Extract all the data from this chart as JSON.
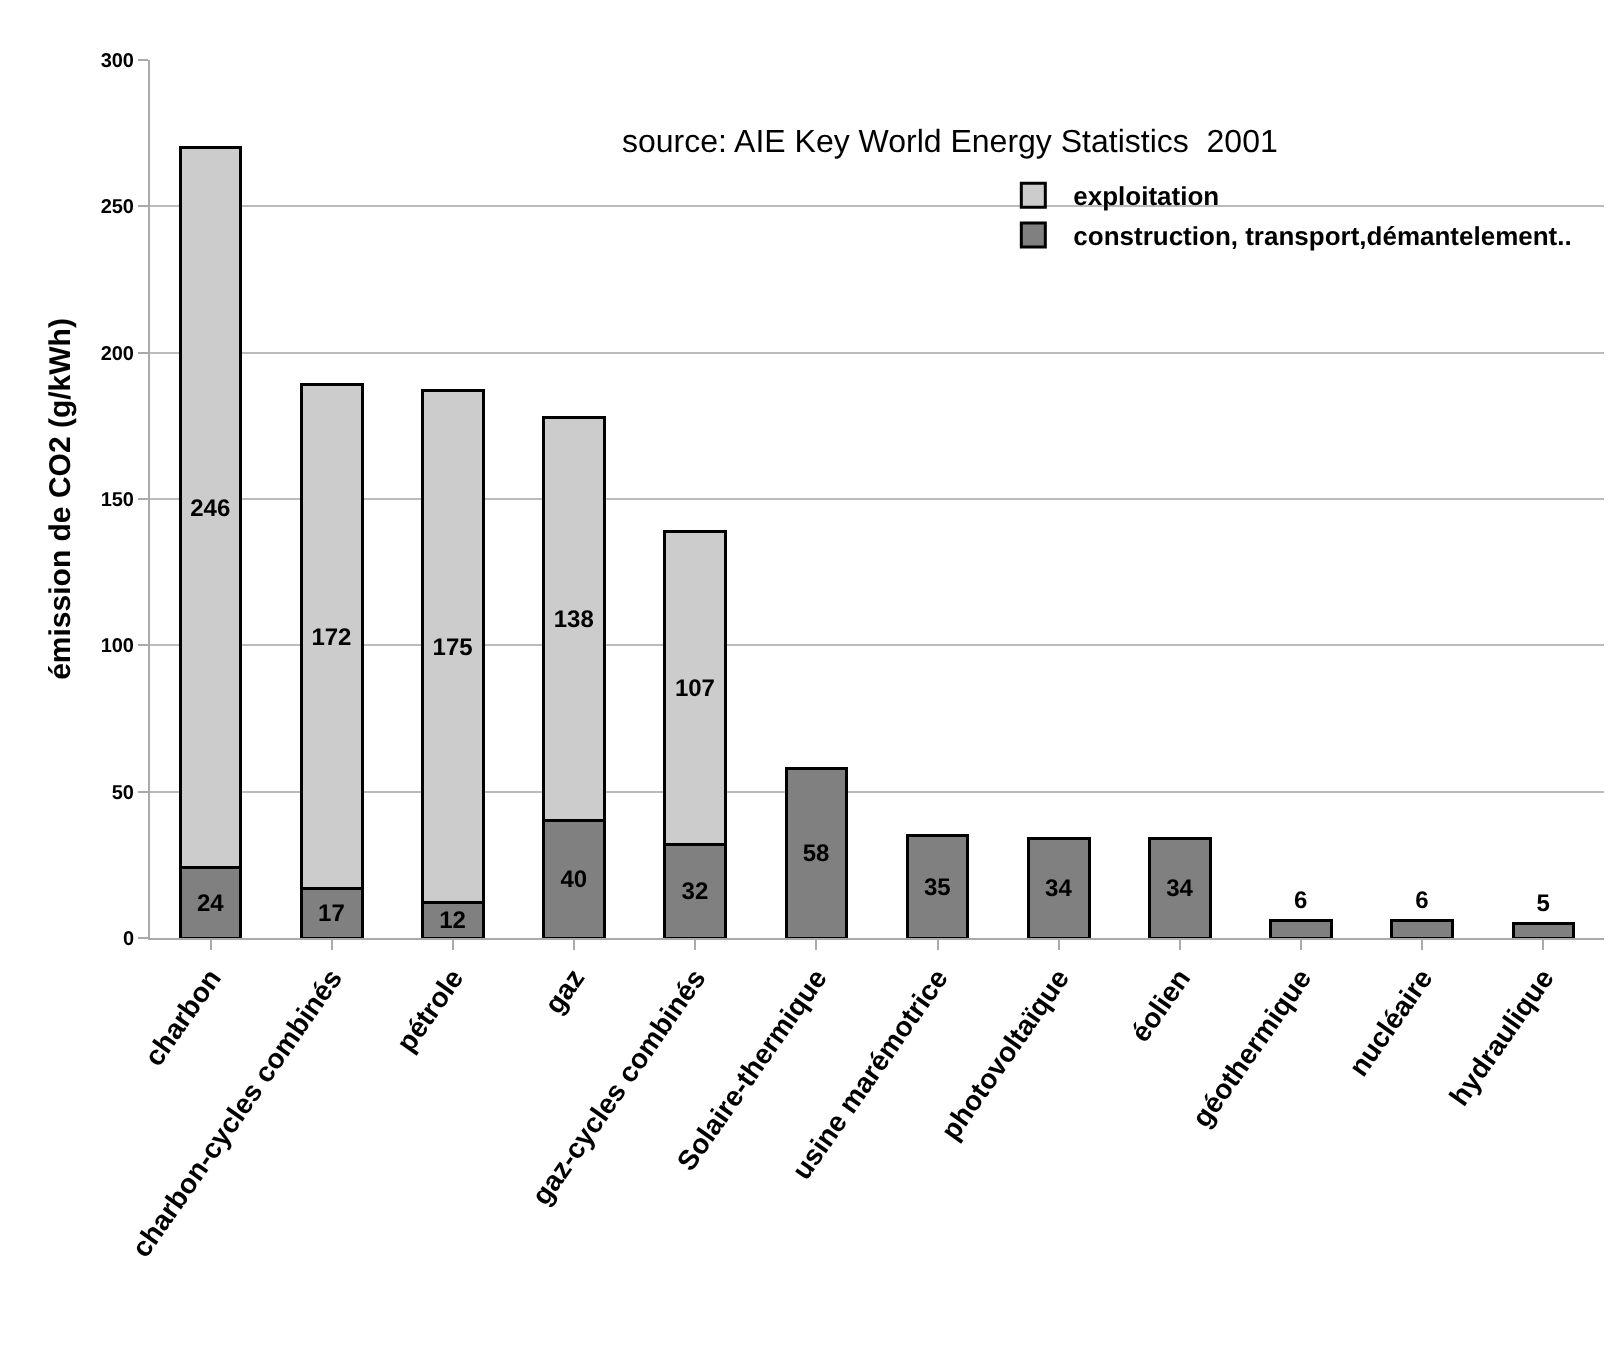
{
  "chart_data": {
    "type": "bar",
    "stacked": true,
    "ylabel": "émission de CO2 (g/kWh)",
    "annotations": [
      "source: AIE Key World Energy Statistics  2001"
    ],
    "categories": [
      "charbon",
      "charbon-cycles combinés",
      "pétrole",
      "gaz",
      "gaz-cycles combinés",
      "Solaire-thermique",
      "usine marémotrice",
      "photovoltaïque",
      "éolien",
      "géothermique",
      "nucléaire",
      "hydraulique"
    ],
    "series": [
      {
        "name": "construction, transport,démantelement..",
        "color": "#808080",
        "values": [
          24,
          17,
          12,
          40,
          32,
          58,
          35,
          34,
          34,
          6,
          6,
          5
        ]
      },
      {
        "name": "exploitation",
        "color": "#cccccc",
        "values": [
          246,
          172,
          175,
          138,
          107,
          null,
          null,
          null,
          null,
          null,
          null,
          null
        ]
      }
    ],
    "ylim": [
      0,
      300
    ],
    "yticks": [
      0,
      50,
      100,
      150,
      200,
      250,
      300
    ],
    "grid": "y",
    "legend": "top right",
    "data_labels": true
  }
}
